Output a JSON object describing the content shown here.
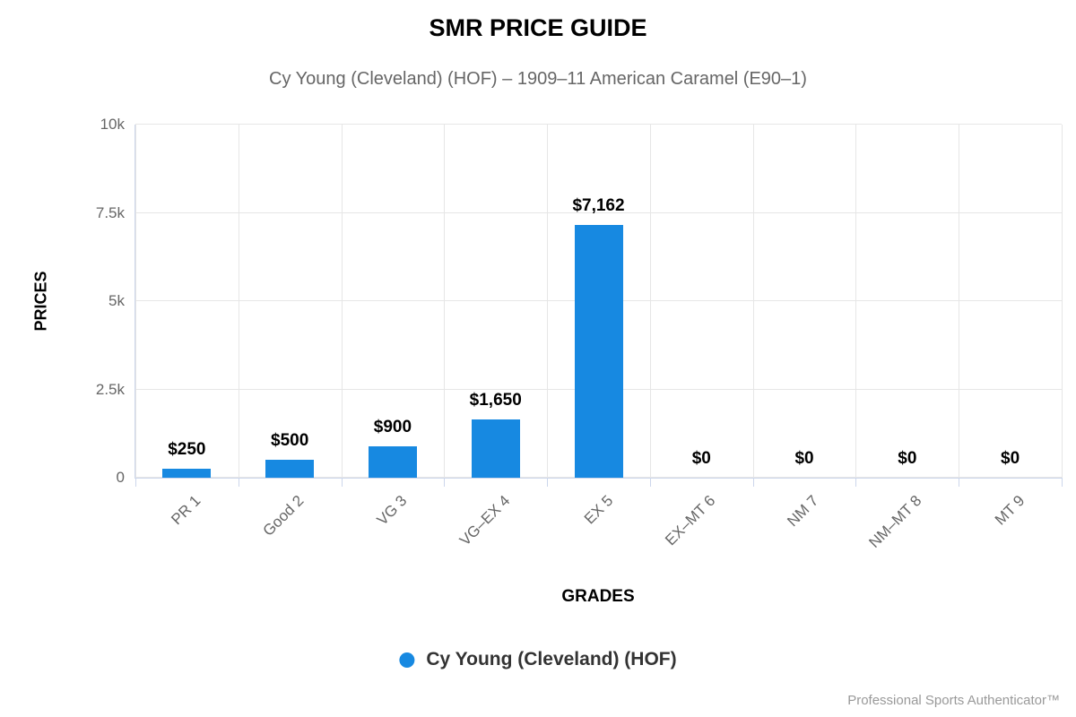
{
  "chart": {
    "title": "SMR PRICE GUIDE",
    "subtitle": "Cy Young (Cleveland) (HOF) – 1909–11 American Caramel (E90–1)",
    "y_axis_title": "PRICES",
    "x_axis_title": "GRADES",
    "legend_label": "Cy Young (Cleveland) (HOF)",
    "credit": "Professional Sports Authenticator™"
  },
  "chart_data": {
    "type": "bar",
    "title": "SMR PRICE GUIDE",
    "subtitle": "Cy Young (Cleveland) (HOF) – 1909–11 American Caramel (E90–1)",
    "xlabel": "GRADES",
    "ylabel": "PRICES",
    "categories": [
      "PR 1",
      "Good 2",
      "VG 3",
      "VG–EX 4",
      "EX 5",
      "EX–MT 6",
      "NM 7",
      "NM–MT 8",
      "MT 9"
    ],
    "series": [
      {
        "name": "Cy Young (Cleveland) (HOF)",
        "values": [
          250,
          500,
          900,
          1650,
          7162,
          0,
          0,
          0,
          0
        ],
        "color": "#1789e1"
      }
    ],
    "value_labels": [
      "$250",
      "$500",
      "$900",
      "$1,650",
      "$7,162",
      "$0",
      "$0",
      "$0",
      "$0"
    ],
    "y_ticks": [
      {
        "label": "0",
        "value": 0
      },
      {
        "label": "2.5k",
        "value": 2500
      },
      {
        "label": "5k",
        "value": 5000
      },
      {
        "label": "7.5k",
        "value": 7500
      },
      {
        "label": "10k",
        "value": 10000
      }
    ],
    "ylim": [
      0,
      10000
    ],
    "grid": true,
    "legend_position": "bottom"
  },
  "colors": {
    "bar": "#1789e1",
    "grid": "#e6e6e6",
    "axis": "#ccd6eb",
    "tick_text": "#666666",
    "subtitle_text": "#666666",
    "legend_text": "#333333",
    "credit_text": "#999999"
  }
}
